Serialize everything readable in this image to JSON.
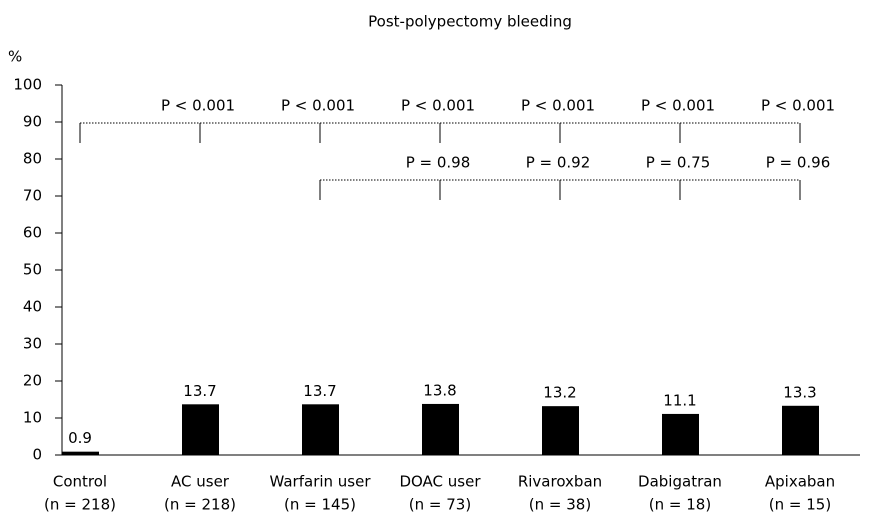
{
  "chart_data": {
    "type": "bar",
    "title": "Post-polypectomy bleeding",
    "y_label": "%",
    "categories": [
      "Control",
      "AC user",
      "Warfarin user",
      "DOAC user",
      "Rivaroxban",
      "Dabigatran",
      "Apixaban"
    ],
    "category_counts": [
      "(n = 218)",
      "(n = 218)",
      "(n = 145)",
      "(n = 73)",
      "(n = 38)",
      "(n = 18)",
      "(n = 15)"
    ],
    "values": [
      0.9,
      13.7,
      13.7,
      13.8,
      13.2,
      11.1,
      13.3
    ],
    "color": "#000000",
    "ylim": [
      0,
      100
    ],
    "yticks": [
      0,
      10,
      20,
      30,
      40,
      50,
      60,
      70,
      80,
      90,
      100
    ],
    "grid": false,
    "annotations": [
      {
        "labels": [
          "P < 0.001",
          "P < 0.001",
          "P < 0.001",
          "P < 0.001",
          "P < 0.001",
          "P < 0.001"
        ]
      },
      {
        "labels": [
          "P = 0.98",
          "P = 0.92",
          "P = 0.75",
          "P = 0.96"
        ]
      }
    ]
  }
}
